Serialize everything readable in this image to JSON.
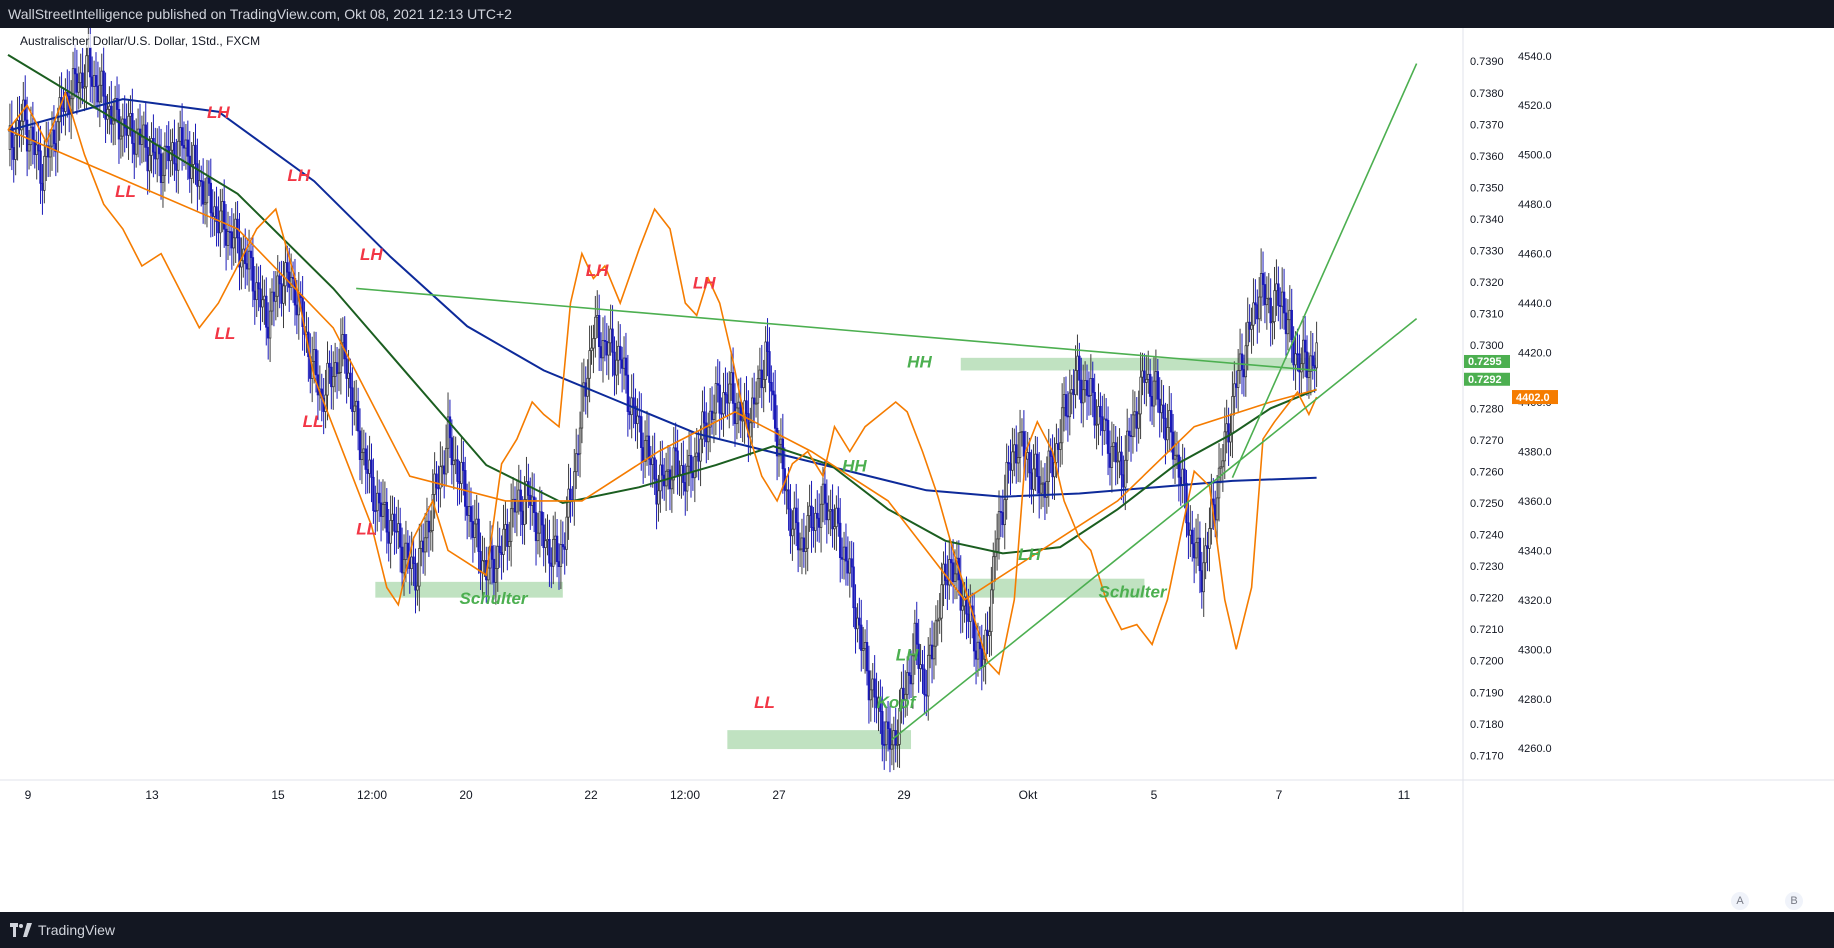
{
  "header": {
    "text": "WallStreetIntelligence published on TradingView.com, Okt 08, 2021 12:13 UTC+2"
  },
  "symbol_title": "Australischer Dollar/U.S. Dollar, 1Std., FXCM",
  "footer": {
    "brand": "TradingView"
  },
  "axis_buttons": {
    "left": "A",
    "right": "B"
  },
  "colors": {
    "candle_up": "#3d3d3d",
    "candle_down": "#1a1ab8",
    "index_line": "#f57c00",
    "ema_fast": "#f57c00",
    "ema_mid": "#1b5e20",
    "ema_slow": "#0d2a9a",
    "trend_line": "#4caf50",
    "zone": "#a5d6a7",
    "label_red": "#f23645",
    "label_green": "#4caf50",
    "price_tag": "#4caf50",
    "index_tag": "#f57c00"
  },
  "chart_data": {
    "type": "candlestick",
    "title": "Australischer Dollar/U.S. Dollar, 1Std., FXCM",
    "ylim_left_axis": [
      0.7166,
      0.7398
    ],
    "ylim_right_axis": [
      4252,
      4548
    ],
    "x_ticks": [
      "9",
      "13",
      "15",
      "12:00",
      "20",
      "22",
      "12:00",
      "27",
      "29",
      "Okt",
      "5",
      "7",
      "11"
    ],
    "y_ticks_price": [
      "0.7390",
      "0.7380",
      "0.7370",
      "0.7360",
      "0.7350",
      "0.7340",
      "0.7330",
      "0.7320",
      "0.7310",
      "0.7300",
      "0.7290",
      "0.7280",
      "0.7270",
      "0.7260",
      "0.7250",
      "0.7240",
      "0.7230",
      "0.7220",
      "0.7210",
      "0.7200",
      "0.7190",
      "0.7180",
      "0.7170"
    ],
    "y_ticks_index": [
      "4540.0",
      "4520.0",
      "4500.0",
      "4480.0",
      "4460.0",
      "4440.0",
      "4420.0",
      "4400.0",
      "4380.0",
      "4360.0",
      "4340.0",
      "4320.0",
      "4300.0",
      "4280.0",
      "4260.0"
    ],
    "last_price_tags": [
      "0.7295",
      "0.7292"
    ],
    "index_tag": "4402.0",
    "price_path": [
      [
        0,
        0.7362
      ],
      [
        8,
        0.7372
      ],
      [
        18,
        0.7355
      ],
      [
        30,
        0.7378
      ],
      [
        42,
        0.7388
      ],
      [
        55,
        0.7372
      ],
      [
        68,
        0.7366
      ],
      [
        80,
        0.7358
      ],
      [
        92,
        0.7364
      ],
      [
        100,
        0.7352
      ],
      [
        110,
        0.734
      ],
      [
        120,
        0.7332
      ],
      [
        128,
        0.7322
      ],
      [
        135,
        0.7308
      ],
      [
        144,
        0.7322
      ],
      [
        150,
        0.7318
      ],
      [
        158,
        0.7296
      ],
      [
        164,
        0.7283
      ],
      [
        170,
        0.7292
      ],
      [
        176,
        0.7298
      ],
      [
        182,
        0.7275
      ],
      [
        190,
        0.7255
      ],
      [
        196,
        0.7246
      ],
      [
        202,
        0.7242
      ],
      [
        208,
        0.7232
      ],
      [
        214,
        0.7228
      ],
      [
        222,
        0.725
      ],
      [
        230,
        0.727
      ],
      [
        238,
        0.7255
      ],
      [
        244,
        0.724
      ],
      [
        250,
        0.7228
      ],
      [
        258,
        0.7235
      ],
      [
        264,
        0.7248
      ],
      [
        272,
        0.7252
      ],
      [
        280,
        0.7238
      ],
      [
        288,
        0.7232
      ],
      [
        294,
        0.725
      ],
      [
        300,
        0.728
      ],
      [
        306,
        0.7305
      ],
      [
        312,
        0.73
      ],
      [
        320,
        0.7296
      ],
      [
        326,
        0.728
      ],
      [
        332,
        0.727
      ],
      [
        340,
        0.7255
      ],
      [
        348,
        0.7262
      ],
      [
        356,
        0.7258
      ],
      [
        362,
        0.727
      ],
      [
        370,
        0.7282
      ],
      [
        378,
        0.7285
      ],
      [
        384,
        0.7276
      ],
      [
        390,
        0.728
      ],
      [
        396,
        0.7298
      ],
      [
        402,
        0.7272
      ],
      [
        408,
        0.7248
      ],
      [
        414,
        0.7236
      ],
      [
        420,
        0.7244
      ],
      [
        428,
        0.725
      ],
      [
        434,
        0.724
      ],
      [
        440,
        0.7228
      ],
      [
        446,
        0.7205
      ],
      [
        452,
        0.719
      ],
      [
        458,
        0.7178
      ],
      [
        462,
        0.7172
      ],
      [
        468,
        0.7188
      ],
      [
        474,
        0.7205
      ],
      [
        480,
        0.7192
      ],
      [
        486,
        0.7215
      ],
      [
        492,
        0.7232
      ],
      [
        498,
        0.7222
      ],
      [
        504,
        0.721
      ],
      [
        510,
        0.7198
      ],
      [
        516,
        0.7235
      ],
      [
        522,
        0.7258
      ],
      [
        528,
        0.727
      ],
      [
        534,
        0.7262
      ],
      [
        540,
        0.7255
      ],
      [
        546,
        0.7262
      ],
      [
        552,
        0.7278
      ],
      [
        558,
        0.729
      ],
      [
        564,
        0.7286
      ],
      [
        570,
        0.7278
      ],
      [
        576,
        0.7268
      ],
      [
        582,
        0.726
      ],
      [
        588,
        0.7275
      ],
      [
        594,
        0.729
      ],
      [
        600,
        0.7285
      ],
      [
        606,
        0.7274
      ],
      [
        612,
        0.7262
      ],
      [
        618,
        0.724
      ],
      [
        624,
        0.7228
      ],
      [
        630,
        0.7248
      ],
      [
        636,
        0.7268
      ],
      [
        642,
        0.7288
      ],
      [
        648,
        0.7302
      ],
      [
        654,
        0.7318
      ],
      [
        660,
        0.7312
      ],
      [
        666,
        0.7315
      ],
      [
        672,
        0.7298
      ],
      [
        678,
        0.7294
      ],
      [
        684,
        0.7296
      ]
    ],
    "index_path": [
      [
        0,
        4510
      ],
      [
        10,
        4520
      ],
      [
        20,
        4505
      ],
      [
        30,
        4525
      ],
      [
        40,
        4500
      ],
      [
        50,
        4480
      ],
      [
        60,
        4470
      ],
      [
        70,
        4455
      ],
      [
        80,
        4460
      ],
      [
        90,
        4445
      ],
      [
        100,
        4430
      ],
      [
        110,
        4440
      ],
      [
        120,
        4455
      ],
      [
        130,
        4470
      ],
      [
        140,
        4478
      ],
      [
        150,
        4450
      ],
      [
        160,
        4410
      ],
      [
        170,
        4390
      ],
      [
        180,
        4370
      ],
      [
        190,
        4350
      ],
      [
        198,
        4325
      ],
      [
        204,
        4318
      ],
      [
        212,
        4345
      ],
      [
        222,
        4360
      ],
      [
        230,
        4340
      ],
      [
        240,
        4335
      ],
      [
        250,
        4330
      ],
      [
        258,
        4375
      ],
      [
        266,
        4385
      ],
      [
        274,
        4400
      ],
      [
        280,
        4395
      ],
      [
        288,
        4390
      ],
      [
        294,
        4440
      ],
      [
        300,
        4460
      ],
      [
        306,
        4450
      ],
      [
        312,
        4455
      ],
      [
        320,
        4440
      ],
      [
        330,
        4462
      ],
      [
        338,
        4478
      ],
      [
        346,
        4470
      ],
      [
        354,
        4440
      ],
      [
        360,
        4435
      ],
      [
        366,
        4450
      ],
      [
        372,
        4440
      ],
      [
        378,
        4420
      ],
      [
        386,
        4390
      ],
      [
        394,
        4370
      ],
      [
        402,
        4360
      ],
      [
        410,
        4375
      ],
      [
        418,
        4380
      ],
      [
        426,
        4370
      ],
      [
        432,
        4390
      ],
      [
        440,
        4380
      ],
      [
        448,
        4390
      ],
      [
        456,
        4395
      ],
      [
        464,
        4400
      ],
      [
        470,
        4396
      ],
      [
        478,
        4380
      ],
      [
        486,
        4362
      ],
      [
        494,
        4340
      ],
      [
        500,
        4325
      ],
      [
        506,
        4310
      ],
      [
        512,
        4295
      ],
      [
        518,
        4290
      ],
      [
        526,
        4320
      ],
      [
        532,
        4380
      ],
      [
        538,
        4392
      ],
      [
        546,
        4380
      ],
      [
        552,
        4360
      ],
      [
        560,
        4345
      ],
      [
        566,
        4340
      ],
      [
        574,
        4320
      ],
      [
        582,
        4308
      ],
      [
        590,
        4310
      ],
      [
        598,
        4302
      ],
      [
        606,
        4320
      ],
      [
        614,
        4350
      ],
      [
        620,
        4372
      ],
      [
        628,
        4366
      ],
      [
        636,
        4320
      ],
      [
        642,
        4300
      ],
      [
        650,
        4325
      ],
      [
        656,
        4385
      ],
      [
        662,
        4392
      ],
      [
        668,
        4398
      ],
      [
        674,
        4404
      ],
      [
        680,
        4395
      ],
      [
        684,
        4402
      ]
    ],
    "ema_fast": [
      [
        0,
        4510
      ],
      [
        60,
        4490
      ],
      [
        120,
        4470
      ],
      [
        170,
        4430
      ],
      [
        210,
        4370
      ],
      [
        260,
        4360
      ],
      [
        300,
        4360
      ],
      [
        340,
        4380
      ],
      [
        380,
        4396
      ],
      [
        420,
        4380
      ],
      [
        460,
        4360
      ],
      [
        500,
        4320
      ],
      [
        540,
        4340
      ],
      [
        580,
        4360
      ],
      [
        620,
        4390
      ],
      [
        660,
        4400
      ],
      [
        684,
        4405
      ]
    ],
    "ema_mid": [
      [
        0,
        0.7392
      ],
      [
        60,
        0.737
      ],
      [
        120,
        0.7348
      ],
      [
        170,
        0.7318
      ],
      [
        210,
        0.729
      ],
      [
        250,
        0.7262
      ],
      [
        290,
        0.725
      ],
      [
        330,
        0.7255
      ],
      [
        370,
        0.7262
      ],
      [
        400,
        0.7268
      ],
      [
        430,
        0.7262
      ],
      [
        460,
        0.7248
      ],
      [
        490,
        0.7238
      ],
      [
        520,
        0.7234
      ],
      [
        550,
        0.7236
      ],
      [
        580,
        0.7248
      ],
      [
        610,
        0.7262
      ],
      [
        640,
        0.7272
      ],
      [
        660,
        0.728
      ],
      [
        684,
        0.7286
      ]
    ],
    "ema_slow": [
      [
        0,
        0.7368
      ],
      [
        60,
        0.7378
      ],
      [
        110,
        0.7374
      ],
      [
        160,
        0.7352
      ],
      [
        200,
        0.7328
      ],
      [
        240,
        0.7306
      ],
      [
        280,
        0.7292
      ],
      [
        320,
        0.7282
      ],
      [
        360,
        0.7272
      ],
      [
        400,
        0.7266
      ],
      [
        440,
        0.726
      ],
      [
        480,
        0.7254
      ],
      [
        520,
        0.7252
      ],
      [
        560,
        0.7253
      ],
      [
        600,
        0.7255
      ],
      [
        640,
        0.7257
      ],
      [
        684,
        0.7258
      ]
    ],
    "trend_lines": [
      {
        "from": [
          182,
          0.7318
        ],
        "to": [
          684,
          0.7292
        ]
      },
      {
        "from": [
          462,
          0.7175
        ],
        "to": [
          684,
          0.7283
        ]
      },
      {
        "from": [
          640,
          0.7258
        ],
        "to": [
          684,
          0.7318
        ]
      }
    ],
    "zones": [
      {
        "x": [
          192,
          290
        ],
        "y": [
          0.722,
          0.7225
        ]
      },
      {
        "x": [
          376,
          472
        ],
        "y": [
          0.7172,
          0.7178
        ]
      },
      {
        "x": [
          498,
          684
        ],
        "y": [
          0.7292,
          0.7296
        ]
      },
      {
        "x": [
          498,
          594
        ],
        "y": [
          0.722,
          0.7226
        ]
      }
    ],
    "annotations": [
      {
        "text": "LH",
        "x": 104,
        "y": 0.7372,
        "color": "red"
      },
      {
        "text": "LL",
        "x": 56,
        "y": 0.7347,
        "color": "red"
      },
      {
        "text": "LH",
        "x": 146,
        "y": 0.7352,
        "color": "red"
      },
      {
        "text": "LL",
        "x": 108,
        "y": 0.7302,
        "color": "red"
      },
      {
        "text": "LH",
        "x": 184,
        "y": 0.7327,
        "color": "red"
      },
      {
        "text": "LL",
        "x": 154,
        "y": 0.7274,
        "color": "red"
      },
      {
        "text": "LL",
        "x": 182,
        "y": 0.724,
        "color": "red"
      },
      {
        "text": "LH",
        "x": 302,
        "y": 0.7322,
        "color": "red"
      },
      {
        "text": "LH",
        "x": 358,
        "y": 0.7318,
        "color": "red"
      },
      {
        "text": "LL",
        "x": 390,
        "y": 0.7185,
        "color": "red"
      },
      {
        "text": "HH",
        "x": 470,
        "y": 0.7293,
        "color": "green"
      },
      {
        "text": "HH",
        "x": 436,
        "y": 0.726,
        "color": "green"
      },
      {
        "text": "LH",
        "x": 464,
        "y": 0.72,
        "color": "green"
      },
      {
        "text": "Kopf",
        "x": 454,
        "y": 0.7185,
        "color": "green"
      },
      {
        "text": "Schulter",
        "x": 236,
        "y": 0.7218,
        "color": "green"
      },
      {
        "text": "LH",
        "x": 528,
        "y": 0.7232,
        "color": "green"
      },
      {
        "text": "Schulter",
        "x": 570,
        "y": 0.722,
        "color": "green"
      }
    ]
  }
}
